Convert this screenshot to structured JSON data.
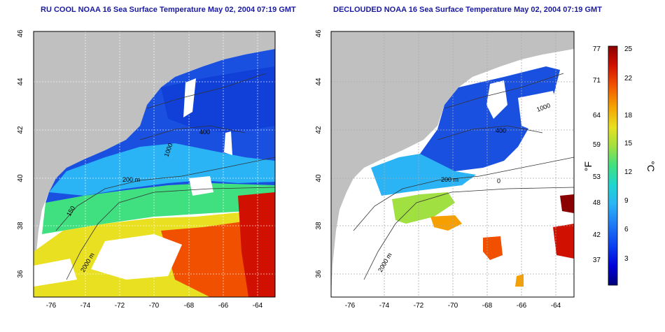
{
  "panels": [
    {
      "title": "RU COOL NOAA 16 Sea Surface Temperature May 02, 2004 07:19 GMT",
      "x_ticks": [
        "-76",
        "-74",
        "-72",
        "-70",
        "-68",
        "-66",
        "-64"
      ],
      "y_ticks": [
        "46",
        "44",
        "42",
        "40",
        "38",
        "36"
      ],
      "contour_labels": [
        "200 m",
        "2000 m",
        "400",
        "1000",
        "150"
      ]
    },
    {
      "title": "DECLOUDED NOAA 16 Sea Surface Temperature May 02, 2004 07:19 GMT",
      "x_ticks": [
        "-76",
        "-74",
        "-72",
        "-70",
        "-68",
        "-66",
        "-64"
      ],
      "y_ticks": [
        "46",
        "44",
        "42",
        "40",
        "38",
        "36"
      ],
      "contour_labels": [
        "200 m",
        "2000 m",
        "400",
        "0",
        "1000"
      ]
    }
  ],
  "colorbar": {
    "f_label": "°F",
    "c_label": "°C",
    "f_ticks": [
      "77",
      "71",
      "64",
      "59",
      "53",
      "48",
      "42",
      "37"
    ],
    "c_ticks": [
      "25",
      "22",
      "18",
      "15",
      "12",
      "9",
      "6",
      "3"
    ],
    "colors": [
      "#00007a",
      "#0000d8",
      "#0a3cf0",
      "#1e78f5",
      "#2ab4f5",
      "#20d6d0",
      "#40e080",
      "#a0e040",
      "#e8e020",
      "#f5a000",
      "#f05000",
      "#d01000",
      "#8a0000"
    ]
  },
  "map_colors": {
    "land": "#c0c0c0",
    "cloud": "#ffffff",
    "cold": "#1a50e0",
    "mid": "#2ab4f5",
    "warm": "#f5a000",
    "hot": "#d01000"
  }
}
